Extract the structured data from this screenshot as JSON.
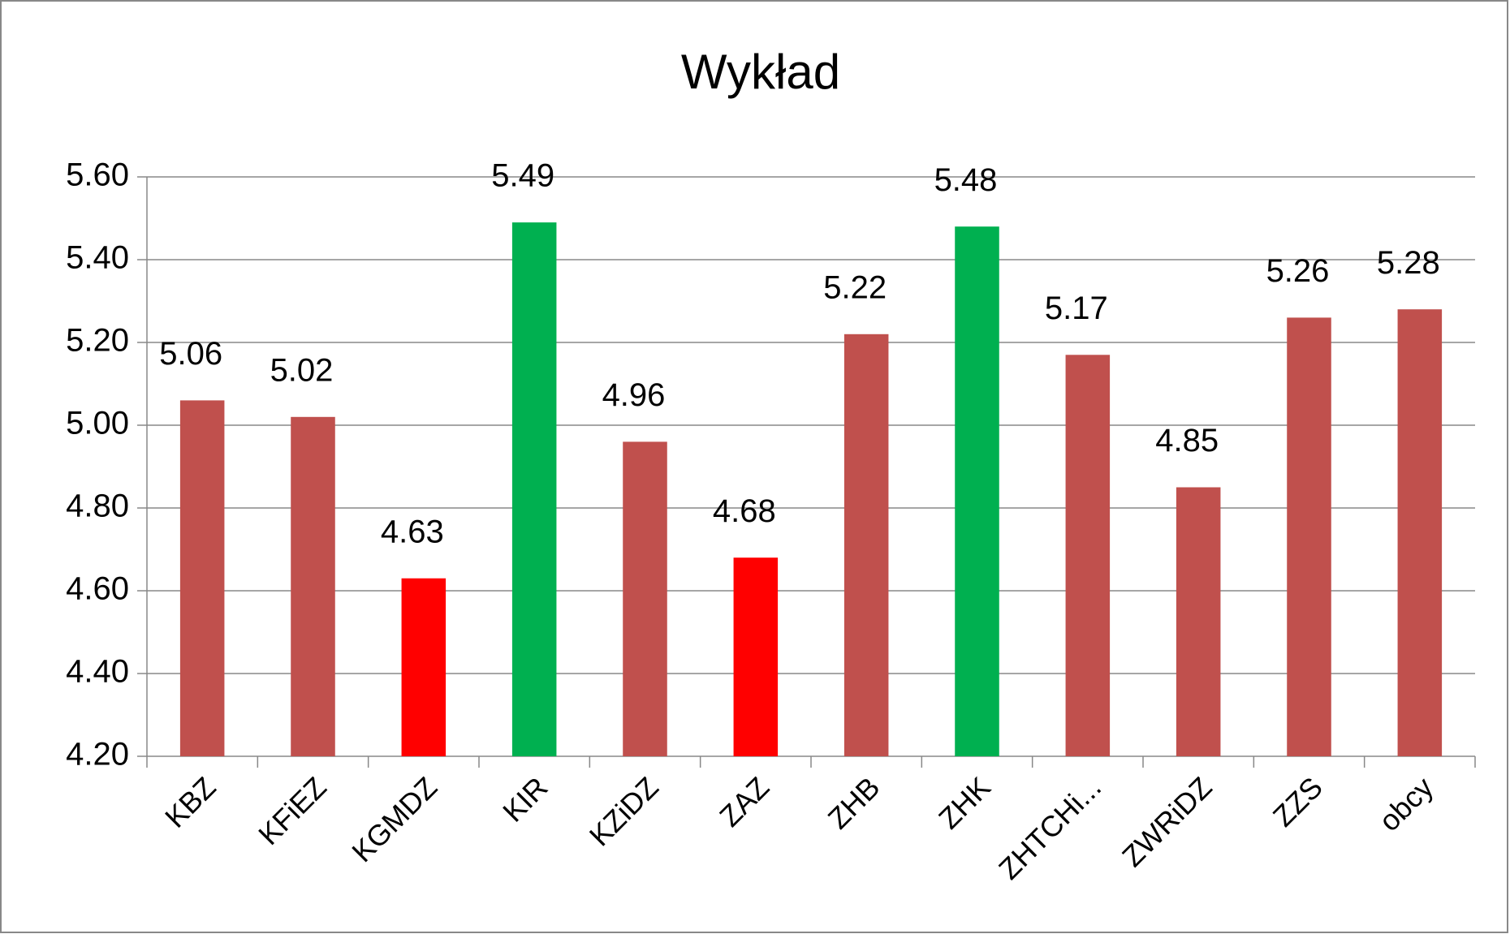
{
  "chart_data": {
    "type": "bar",
    "title": "Wykład",
    "categories": [
      "KBZ",
      "KFiEZ",
      "KGMDZ",
      "KIR",
      "KZiDZ",
      "ZAZ",
      "ZHB",
      "ZHK",
      "ZHTCHi...",
      "ZWRiDZ",
      "ZZS",
      "obcy"
    ],
    "values": [
      5.06,
      5.02,
      4.63,
      5.49,
      4.96,
      4.68,
      5.22,
      5.48,
      5.17,
      4.85,
      5.26,
      5.28
    ],
    "colors": [
      "#c0504d",
      "#c0504d",
      "#ff0000",
      "#00b050",
      "#c0504d",
      "#ff0000",
      "#c0504d",
      "#00b050",
      "#c0504d",
      "#c0504d",
      "#c0504d",
      "#c0504d"
    ],
    "ylim": [
      4.2,
      5.6
    ],
    "yticks": [
      {
        "value": 4.2,
        "label": "4.20"
      },
      {
        "value": 4.4,
        "label": "4.40"
      },
      {
        "value": 4.6,
        "label": "4.60"
      },
      {
        "value": 4.8,
        "label": "4.80"
      },
      {
        "value": 5.0,
        "label": "5.00"
      },
      {
        "value": 5.2,
        "label": "5.20"
      },
      {
        "value": 5.4,
        "label": "5.40"
      },
      {
        "value": 5.6,
        "label": "5.60"
      }
    ],
    "grid": true
  }
}
